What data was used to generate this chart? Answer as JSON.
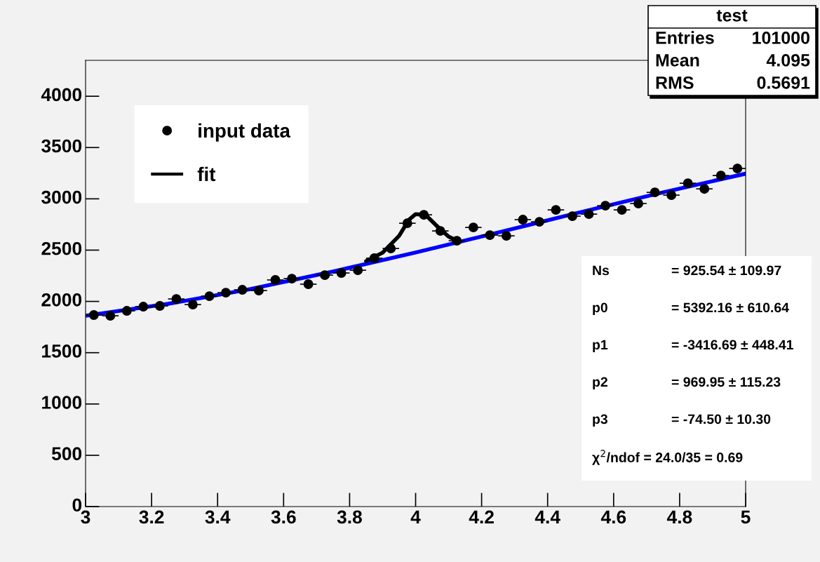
{
  "chart_data": {
    "type": "scatter",
    "x": [
      3.025,
      3.075,
      3.125,
      3.175,
      3.225,
      3.275,
      3.325,
      3.375,
      3.425,
      3.475,
      3.525,
      3.575,
      3.625,
      3.675,
      3.725,
      3.775,
      3.825,
      3.875,
      3.925,
      3.975,
      4.025,
      4.075,
      4.125,
      4.175,
      4.225,
      4.275,
      4.325,
      4.375,
      4.425,
      4.475,
      4.525,
      4.575,
      4.625,
      4.675,
      4.725,
      4.775,
      4.825,
      4.875,
      4.925,
      4.975
    ],
    "series": [
      {
        "name": "input data",
        "color": "#000000",
        "marker": "circle",
        "values": [
          1867,
          1860,
          1908,
          1949,
          1956,
          2024,
          1969,
          2051,
          2085,
          2113,
          2106,
          2209,
          2222,
          2168,
          2256,
          2277,
          2304,
          2421,
          2516,
          2762,
          2844,
          2687,
          2591,
          2721,
          2646,
          2639,
          2797,
          2776,
          2892,
          2831,
          2851,
          2933,
          2892,
          2954,
          3063,
          3036,
          3152,
          3097,
          3227,
          3296
        ],
        "xerrors": [
          0.025,
          0.025,
          0.025,
          0.025,
          0.025,
          0.025,
          0.025,
          0.025,
          0.025,
          0.025,
          0.025,
          0.025,
          0.025,
          0.025,
          0.025,
          0.025,
          0.025,
          0.025,
          0.025,
          0.025,
          0.025,
          0.025,
          0.025,
          0.025,
          0.025,
          0.025,
          0.025,
          0.025,
          0.025,
          0.025,
          0.025,
          0.025,
          0.025,
          0.025,
          0.025,
          0.025,
          0.025,
          0.025,
          0.025,
          0.025
        ]
      },
      {
        "name": "fit",
        "type": "line",
        "color": "#000000",
        "marker": "none",
        "line_style": "solid",
        "x": [
          3.85,
          3.9,
          3.95,
          3.98,
          4.0,
          4.03,
          4.06,
          4.1,
          4.13
        ],
        "values": [
          2393,
          2475,
          2639,
          2797,
          2851,
          2844,
          2749,
          2632,
          2585
        ]
      },
      {
        "type": "line",
        "color": "#0000ff",
        "marker": "none",
        "line_style": "solid",
        "x": [
          3.0,
          3.25,
          3.5,
          3.75,
          4.0,
          4.25,
          4.5,
          4.75,
          5.0
        ],
        "values": [
          1860,
          1976,
          2121,
          2291,
          2477,
          2672,
          2870,
          3063,
          3245
        ]
      }
    ],
    "xlim": [
      3,
      5
    ],
    "xticks": [
      3,
      3.2,
      3.4,
      3.6,
      3.8,
      4,
      4.2,
      4.4,
      4.6,
      4.8,
      5
    ],
    "ylim": [
      0,
      4350
    ],
    "yticks": [
      0,
      500,
      1000,
      1500,
      2000,
      2500,
      3000,
      3500,
      4000
    ],
    "grid": false,
    "legend": "top left",
    "annotations": [
      "test",
      "Entries 101000",
      "Mean 4.095",
      "RMS 0.5691",
      "Ns = 925.54 ± 109.97",
      "p0 = 5392.16 ± 610.64",
      "p1 = -3416.69 ± 448.41",
      "p2 = 969.95 ± 115.23",
      "p3 = -74.50 ± 10.30",
      "χ$^{2}$/ndof = 24.0/35 = 0.69"
    ]
  }
}
